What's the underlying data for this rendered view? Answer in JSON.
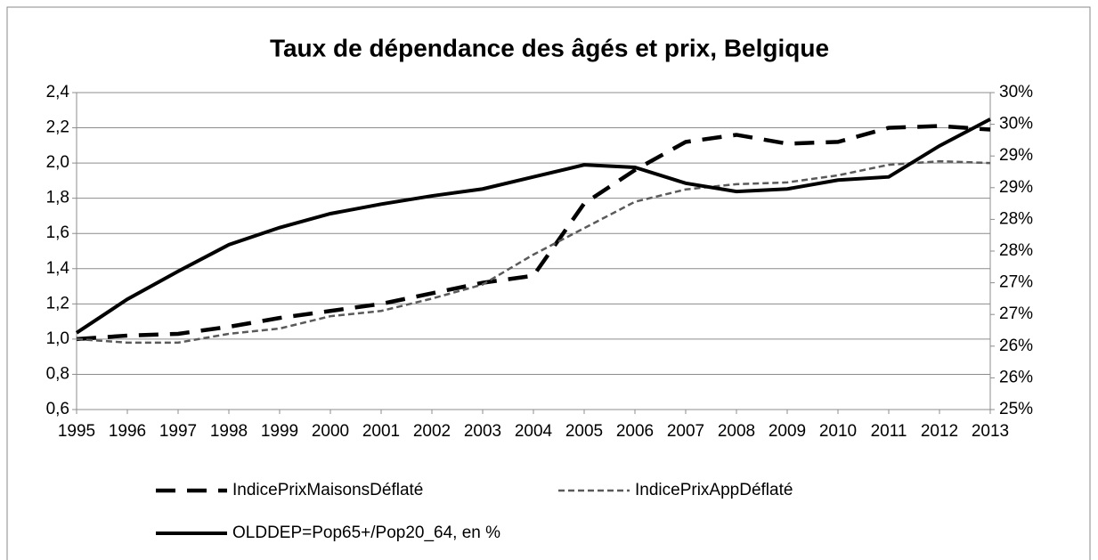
{
  "chart_data": {
    "type": "line",
    "title": "Taux de dépendance des âgés et prix, Belgique",
    "categories": [
      "1995",
      "1996",
      "1997",
      "1998",
      "1999",
      "2000",
      "2001",
      "2002",
      "2003",
      "2004",
      "2005",
      "2006",
      "2007",
      "2008",
      "2009",
      "2010",
      "2011",
      "2012",
      "2013"
    ],
    "series": [
      {
        "name": "IndicePrixMaisonsDéflaté",
        "color": "#000000",
        "dash": "long",
        "values": [
          1.0,
          1.02,
          1.03,
          1.07,
          1.12,
          1.16,
          1.2,
          1.26,
          1.32,
          1.36,
          1.77,
          1.96,
          2.12,
          2.16,
          2.11,
          2.12,
          2.2,
          2.21,
          2.19
        ]
      },
      {
        "name": "IndicePrixAppDéflaté",
        "color": "#5a5a5a",
        "dash": "short",
        "values": [
          1.0,
          0.98,
          0.98,
          1.03,
          1.06,
          1.13,
          1.16,
          1.23,
          1.31,
          1.48,
          1.63,
          1.78,
          1.85,
          1.88,
          1.89,
          1.93,
          1.99,
          2.01,
          2.0
        ]
      },
      {
        "name": "OLDDEP=Pop65+/Pop20_64, en %",
        "color": "#000000",
        "dash": "solid",
        "axis": "y2",
        "values": [
          26.21,
          26.74,
          27.18,
          27.6,
          27.87,
          28.09,
          28.24,
          28.37,
          28.48,
          28.67,
          28.86,
          28.82,
          28.57,
          28.44,
          28.48,
          28.62,
          28.67,
          29.16,
          29.58
        ]
      }
    ],
    "ylim": [
      0.6,
      2.4
    ],
    "yticks": [
      {
        "value": 0.6,
        "label": "0,6"
      },
      {
        "value": 0.8,
        "label": "0,8"
      },
      {
        "value": 1.0,
        "label": "1,0"
      },
      {
        "value": 1.2,
        "label": "1,2"
      },
      {
        "value": 1.4,
        "label": "1,4"
      },
      {
        "value": 1.6,
        "label": "1,6"
      },
      {
        "value": 1.8,
        "label": "1,8"
      },
      {
        "value": 2.0,
        "label": "2,0"
      },
      {
        "value": 2.2,
        "label": "2,2"
      },
      {
        "value": 2.4,
        "label": "2,4"
      }
    ],
    "y2lim": [
      25,
      30
    ],
    "y2ticks": [
      {
        "value": 25,
        "label": "25%"
      },
      {
        "value": 25.5,
        "label": "26%"
      },
      {
        "value": 26,
        "label": "26%"
      },
      {
        "value": 26.5,
        "label": "27%"
      },
      {
        "value": 27,
        "label": "27%"
      },
      {
        "value": 27.5,
        "label": "28%"
      },
      {
        "value": 28,
        "label": "28%"
      },
      {
        "value": 28.5,
        "label": "29%"
      },
      {
        "value": 29,
        "label": "29%"
      },
      {
        "value": 29.5,
        "label": "30%"
      },
      {
        "value": 30,
        "label": "30%"
      }
    ],
    "grid": true,
    "legend": "bottom"
  }
}
